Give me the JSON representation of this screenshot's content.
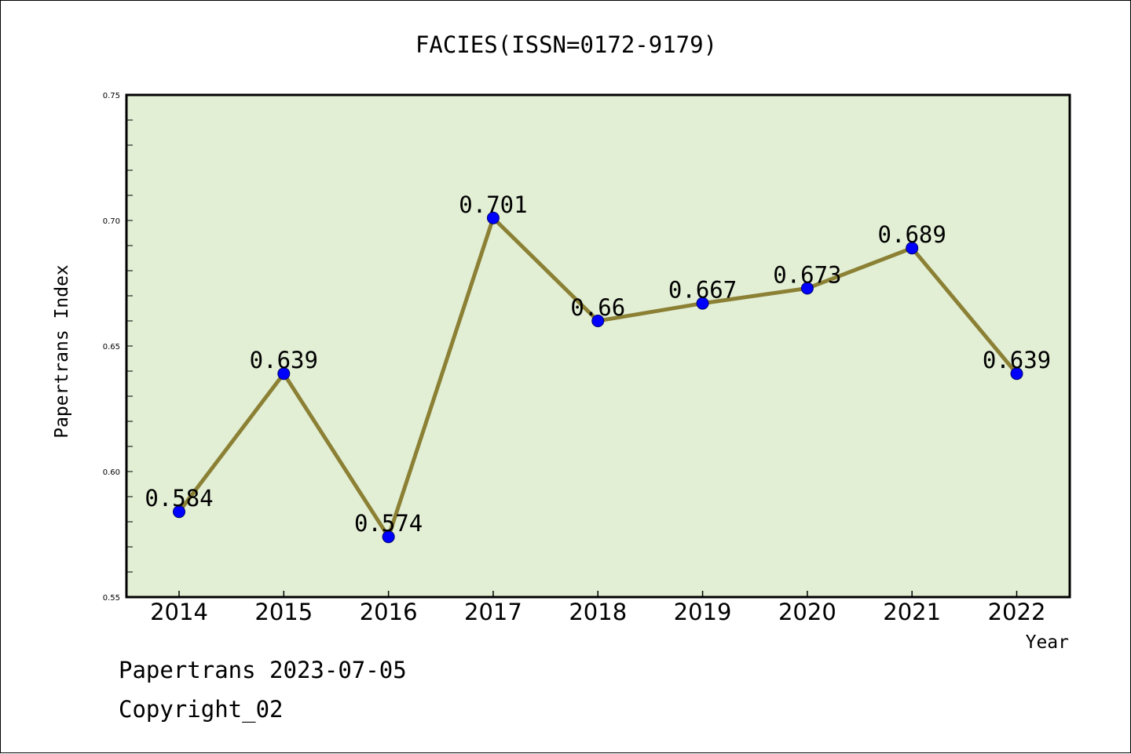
{
  "chart_data": {
    "type": "line",
    "title": "FACIES(ISSN=0172-9179)",
    "xlabel": "Year",
    "ylabel": "Papertrans Index",
    "categories": [
      "2014",
      "2015",
      "2016",
      "2017",
      "2018",
      "2019",
      "2020",
      "2021",
      "2022"
    ],
    "values": [
      0.584,
      0.639,
      0.574,
      0.701,
      0.66,
      0.667,
      0.673,
      0.689,
      0.639
    ],
    "data_labels": [
      "0.584",
      "0.639",
      "0.574",
      "0.701",
      "0.66",
      "0.667",
      "0.673",
      "0.689",
      "0.639"
    ],
    "ylim": [
      0.55,
      0.75
    ],
    "y_ticks": [
      "0.55",
      "0.60",
      "0.65",
      "0.70",
      "0.75"
    ],
    "grid": false,
    "colors": {
      "plot_background": "#e2efd5",
      "line": "#8b8034",
      "marker": "#0000ff"
    }
  },
  "footer": {
    "source": "Papertrans 2023-07-05",
    "copyright": "Copyright_02"
  }
}
